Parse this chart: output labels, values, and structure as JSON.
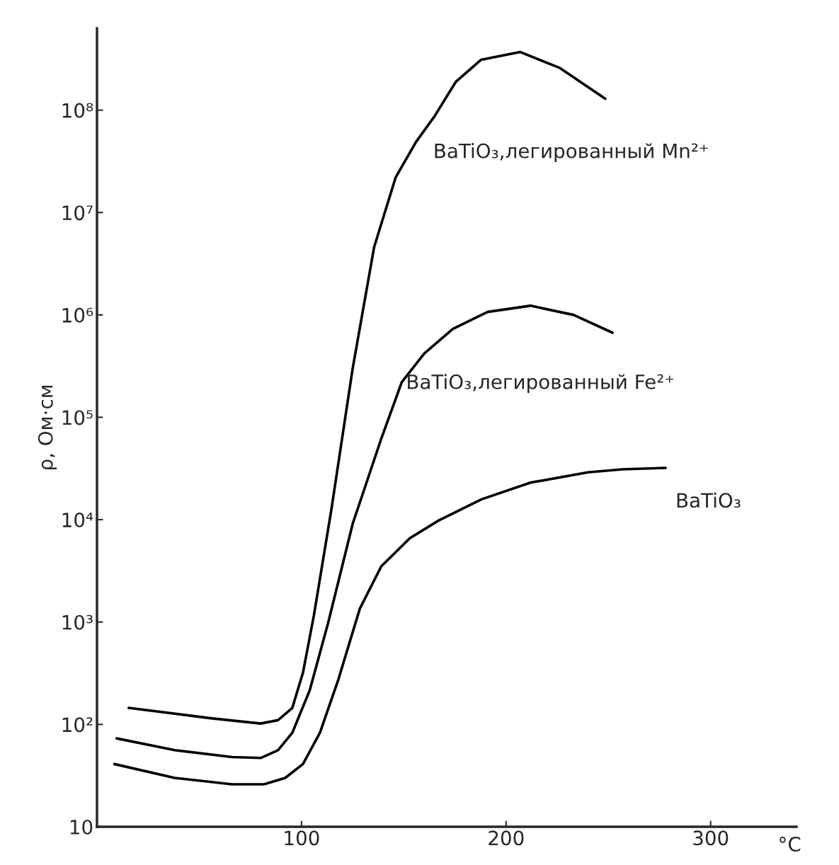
{
  "chart_data": {
    "type": "line",
    "ylabel": "ρ, Ом·см",
    "xlabel": "°C",
    "log": "y",
    "grid": false,
    "legend": false,
    "marker": "none",
    "line_style": "solid",
    "xlim": [
      0,
      342
    ],
    "xticks": [
      100,
      200,
      300
    ],
    "ylim": [
      10,
      630000000
    ],
    "yticks": [
      {
        "value": 10,
        "label": "10"
      },
      {
        "value": 100,
        "label": "10²"
      },
      {
        "value": 1000,
        "label": "10³"
      },
      {
        "value": 10000,
        "label": "10⁴"
      },
      {
        "value": 100000,
        "label": "10⁵"
      },
      {
        "value": 1000000,
        "label": "10⁶"
      },
      {
        "value": 10000000,
        "label": "10⁷"
      },
      {
        "value": 100000000,
        "label": "10⁸"
      }
    ],
    "series": [
      {
        "name": "BaTiO₃,легированный Mn²⁺",
        "color": "#000000",
        "x": [
          15.5,
          55.5,
          80,
          88.5,
          95.5,
          100.7,
          106,
          114.6,
          125,
          135.5,
          146,
          156,
          165,
          175.5,
          187.7,
          206.8,
          226,
          248.5
        ],
        "values": [
          145,
          115,
          102,
          110,
          145,
          320,
          1150,
          12600,
          300000,
          4600000,
          22000000,
          49000000,
          87000000,
          190000000,
          310000000,
          370000000,
          260000000,
          129000000
        ]
      },
      {
        "name": "BaTiO₃,легированный Fe²⁺",
        "color": "#000000",
        "x": [
          9.6,
          38,
          66,
          80,
          88.5,
          95.5,
          104,
          113,
          125,
          139,
          149,
          160,
          174,
          191,
          212,
          233,
          252
        ],
        "values": [
          73,
          56,
          48,
          47,
          56,
          83,
          215,
          980,
          9100,
          62000,
          220000,
          420000,
          730000,
          1070000,
          1230000,
          1000000,
          670000
        ]
      },
      {
        "name": "BaTiO₃",
        "color": "#000000",
        "x": [
          8.5,
          38,
          66,
          81.6,
          92,
          100.7,
          109,
          118,
          128.5,
          139,
          153,
          167,
          188,
          212,
          240,
          257,
          278
        ],
        "values": [
          41,
          30,
          26,
          26,
          30,
          41,
          83,
          274,
          1350,
          3500,
          6600,
          9800,
          15800,
          23000,
          29000,
          31000,
          32000
        ]
      }
    ]
  }
}
